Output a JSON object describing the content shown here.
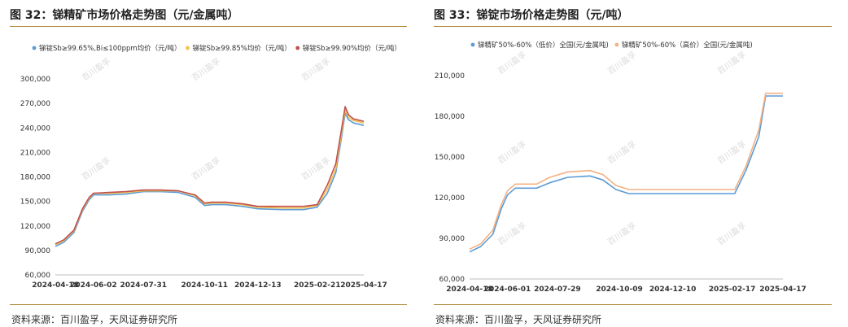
{
  "figures": [
    {
      "title": "图 32：锑精矿市场价格走势图（元/金属吨）",
      "source": "资料来源：百川盈孚，天风证券研究所",
      "watermark": "百川盈孚",
      "chart_data": {
        "type": "line",
        "title": "",
        "xlabel": "",
        "ylabel": "",
        "ylim": [
          60000,
          300000
        ],
        "yticks": [
          "300,000",
          "270,000",
          "240,000",
          "210,000",
          "180,000",
          "150,000",
          "120,000",
          "90,000",
          "60,000"
        ],
        "xticks": [
          "2024-04-18",
          "2024-06-02",
          "2024-07-31",
          "2024-10-11",
          "2024-12-13",
          "2025-02-21",
          "2025-04-17"
        ],
        "legend": "top",
        "grid": false,
        "x": [
          "2024-04-18",
          "2024-04-28",
          "2024-05-10",
          "2024-05-20",
          "2024-05-28",
          "2024-06-02",
          "2024-06-20",
          "2024-07-10",
          "2024-07-31",
          "2024-08-20",
          "2024-09-10",
          "2024-09-30",
          "2024-10-11",
          "2024-10-20",
          "2024-11-05",
          "2024-11-25",
          "2024-12-13",
          "2025-01-10",
          "2025-02-05",
          "2025-02-21",
          "2025-03-05",
          "2025-03-15",
          "2025-03-22",
          "2025-03-26",
          "2025-03-30",
          "2025-04-05",
          "2025-04-17"
        ],
        "series": [
          {
            "name": "锑锭Sb≥99.65%,Bi≤100ppm均价（元/吨）",
            "color": "#5b9bd5",
            "values": [
              95000,
              100000,
              112000,
              138000,
              152000,
              158000,
              158000,
              159000,
              162000,
              162000,
              161000,
              155000,
              145000,
              146000,
              146000,
              144000,
              141000,
              140000,
              140000,
              143000,
              160000,
              185000,
              230000,
              258000,
              250000,
              246000,
              243000
            ]
          },
          {
            "name": "锑锭Sb≥99.85%均价（元/吨）",
            "color": "#f2c14e",
            "values": [
              97000,
              102000,
              114000,
              140000,
              154000,
              160000,
              160000,
              161000,
              163000,
              163000,
              163000,
              157000,
              147000,
              148000,
              148000,
              146000,
              143000,
              142000,
              142000,
              145000,
              165000,
              190000,
              235000,
              262000,
              253000,
              249000,
              246000
            ]
          },
          {
            "name": "锑锭Sb≥99.90%均价（元/吨）",
            "color": "#c0504d",
            "values": [
              98000,
              103000,
              115000,
              141000,
              155000,
              160000,
              161000,
              162000,
              164000,
              164000,
              163000,
              158000,
              148000,
              149000,
              149000,
              147000,
              144000,
              144000,
              144000,
              146000,
              170000,
              196000,
              240000,
              266000,
              256000,
              251000,
              248000
            ]
          }
        ]
      }
    },
    {
      "title": "图 33：锑锭市场价格走势图（元/吨）",
      "source": "资料来源：百川盈孚，天风证券研究所",
      "watermark": "百川盈孚",
      "chart_data": {
        "type": "line",
        "title": "",
        "xlabel": "",
        "ylabel": "",
        "ylim": [
          60000,
          210000
        ],
        "yticks": [
          "210,000",
          "180,000",
          "150,000",
          "120,000",
          "90,000",
          "60,000"
        ],
        "xticks": [
          "2024-04-18",
          "2024-06-01",
          "2024-07-29",
          "2024-10-09",
          "2024-12-10",
          "2025-02-17",
          "2025-04-17"
        ],
        "legend": "top",
        "grid": false,
        "x": [
          "2024-04-18",
          "2024-05-01",
          "2024-05-15",
          "2024-05-25",
          "2024-06-01",
          "2024-06-10",
          "2024-07-05",
          "2024-07-20",
          "2024-08-10",
          "2024-09-05",
          "2024-09-20",
          "2024-10-05",
          "2024-10-20",
          "2024-11-20",
          "2024-12-10",
          "2025-01-10",
          "2025-02-10",
          "2025-02-20",
          "2025-03-05",
          "2025-03-20",
          "2025-03-28",
          "2025-04-05",
          "2025-04-17"
        ],
        "series": [
          {
            "name": "锑精矿50%-60%（低价）全国(元/金属吨)",
            "color": "#5b9bd5",
            "values": [
              80000,
              84000,
              93000,
              112000,
              122000,
              127000,
              127000,
              131000,
              135000,
              136000,
              133000,
              126000,
              123000,
              123000,
              123000,
              123000,
              123000,
              123000,
              140000,
              165000,
              195000,
              195000,
              195000
            ]
          },
          {
            "name": "锑精矿50%-60%（高价）全国(元/金属吨)",
            "color": "#f4b183",
            "values": [
              82000,
              86000,
              96000,
              115000,
              125000,
              130000,
              130000,
              135000,
              139000,
              140000,
              137000,
              129000,
              126000,
              126000,
              126000,
              126000,
              126000,
              126000,
              143000,
              170000,
              197000,
              197000,
              197000
            ]
          }
        ]
      }
    }
  ]
}
